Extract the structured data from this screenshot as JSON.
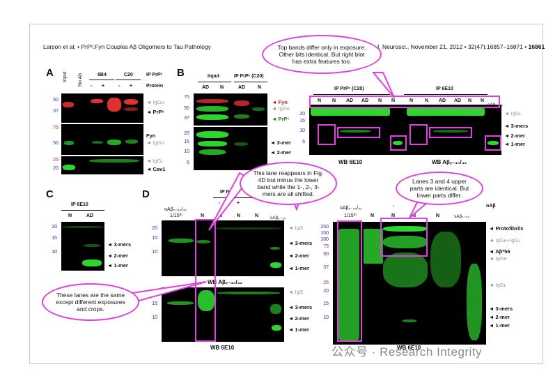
{
  "header": {
    "left": "Larson et al. • PrPᶜ:Fyn Couples Aβ Oligomers to Tau Pathology",
    "right_prefix": "J. Neurosci., November 21, 2012 • 32(47):16857–16871 • ",
    "page_number": "16861"
  },
  "panels": {
    "A": {
      "letter": "A",
      "lanes": [
        "Input",
        "No Ab"
      ],
      "group_8b4": "8B4",
      "group_c20": "C20",
      "ip_label": "IP PrPᶜ",
      "protein_label": "Protein",
      "signs": [
        "-",
        "+",
        "-",
        "+"
      ],
      "mw_top": [
        "50",
        "37"
      ],
      "mw_mid": [
        "75",
        "50"
      ],
      "mw_bot": [
        "25",
        "20"
      ],
      "labels": [
        "IgGʜ",
        "PrPᶜ",
        "Fyn",
        "IgGʜ",
        "IgGʟ",
        "Cav1"
      ]
    },
    "B": {
      "letter": "B",
      "input": "Input",
      "ip": "IP PrPᶜ (C20)",
      "lanes": [
        "AD",
        "N",
        "AD",
        "N"
      ],
      "mw_top": [
        "75",
        "50",
        "37"
      ],
      "mw_bot": [
        "20",
        "15",
        "10",
        "5"
      ],
      "labels": [
        "Fyn",
        "IgGʜ",
        "PrPᶜ",
        "3-mer",
        "2-mer"
      ]
    },
    "B2": {
      "ip_left": "IP PrPᶜ (C20)",
      "ip_right": "IP 6E10",
      "lanes_left": [
        "N",
        "N",
        "AD",
        "AD",
        "N",
        "N"
      ],
      "lanes_right": [
        "N",
        "N",
        "AD",
        "AD",
        "N",
        "N"
      ],
      "sab": "sAβ₁₋₄₂",
      "mw": [
        "20",
        "15",
        "10",
        "5"
      ],
      "labels": [
        "IgGʟ",
        "3-mers",
        "2-mer",
        "1-mer"
      ],
      "caption_left": "WB 6E10",
      "caption_right": "WB Aβₓ₋₄₀/₄₂"
    },
    "C": {
      "letter": "C",
      "ip": "IP 6E10",
      "lanes": [
        "N",
        "AD"
      ],
      "mw": [
        "20",
        "15",
        "10"
      ],
      "labels": [
        "3-mers",
        "2-mer",
        "1-mer"
      ]
    },
    "D": {
      "letter": "D",
      "ip": "IP PrPᶜ",
      "oab": "oAβₓ₋₄₀/₄₂",
      "frac": "1/15ᵗʰ",
      "lanes": [
        "N",
        "N",
        "N",
        "N"
      ],
      "signs": [
        "-",
        "+"
      ],
      "sab": "sAβ₁₋₄₂",
      "mw_top": [
        "20",
        "15",
        "10"
      ],
      "mw_bot": [
        "15",
        "10"
      ],
      "labels_top": [
        "IgG",
        "3-mers",
        "2-mer",
        "1-mer"
      ],
      "labels_bot": [
        "IgG",
        "3-mers",
        "2-mer",
        "1-mer"
      ],
      "caption_top": "WB Aβₓ₋₄₀/₄₂",
      "caption_bot": "WB 6E10"
    },
    "D2": {
      "oab": "oAβₓ₋₄₀/₄₂",
      "frac": "1/15ᵗʰ",
      "lanes": [
        "N",
        "N",
        "N",
        "N"
      ],
      "sign": "-",
      "sab": "sAβ₁₋₄₂",
      "oab_right": "oAβ",
      "mw": [
        "250",
        "150",
        "100",
        "75",
        "50",
        "37",
        "25",
        "20",
        "15",
        "10"
      ],
      "labels": [
        "Protofibrils",
        "IgGʜ+IgGʟ",
        "Aβ*56",
        "IgGʜ",
        "IgGʟ",
        "3-mers",
        "2-mer",
        "1-mer"
      ],
      "caption": "WB 6E10"
    }
  },
  "annotations": {
    "top_bands": "Top bands differ only in exposure. Other bits identical. But right blot has extra features too.",
    "this_lane": "This lane reappears in Fig. 4D but minus the lower band while the 1-, 2-, 3-mers are all shifted.",
    "lanes_3_4": "Lanes 3 and 4 upper parts are identical. But lower parts differ.",
    "these_lanes": "These lanes are the same except different exposures and crops."
  },
  "watermark": "公众号 · Research Integrity",
  "colors": {
    "highlight": "#e040e0",
    "band_green": "#2fd42f",
    "band_red": "#e03030",
    "mw_blue": "#2a2ad0"
  }
}
